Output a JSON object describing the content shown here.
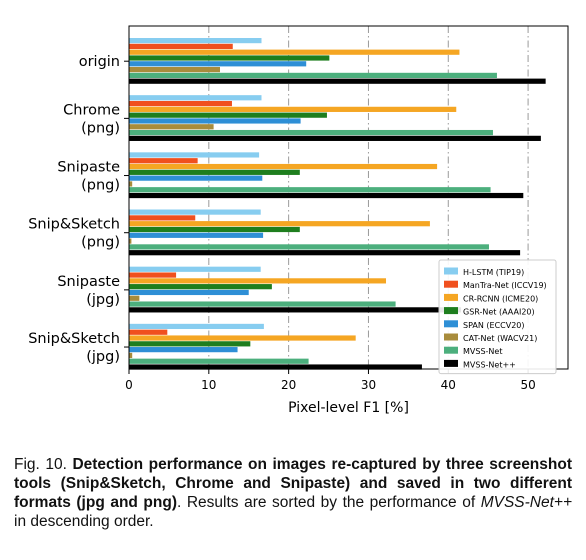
{
  "chart_data": {
    "type": "bar",
    "orientation": "horizontal",
    "xlabel": "Pixel-level F1 [%]",
    "xlim": [
      0,
      55
    ],
    "xticks": [
      0,
      10,
      20,
      30,
      40,
      50
    ],
    "grid": "vertical dash-dot lines at x ticks",
    "legend_position": "lower-right",
    "categories": [
      [
        "origin"
      ],
      [
        "Chrome",
        "(png)"
      ],
      [
        "Snipaste",
        "(png)"
      ],
      [
        "Snip&Sketch",
        "(png)"
      ],
      [
        "Snipaste",
        "(jpg)"
      ],
      [
        "Snip&Sketch",
        "(jpg)"
      ]
    ],
    "series": [
      {
        "name": "H-LSTM (TIP19)",
        "color": "#87cdf0",
        "values": [
          16.6,
          16.6,
          16.3,
          16.5,
          16.5,
          16.9
        ]
      },
      {
        "name": "ManTra-Net (ICCV19)",
        "color": "#f0501e",
        "values": [
          13.0,
          12.9,
          8.6,
          8.3,
          5.9,
          4.8
        ]
      },
      {
        "name": "CR-RCNN (ICME20)",
        "color": "#f5a623",
        "values": [
          41.4,
          41.0,
          38.6,
          37.7,
          32.2,
          28.4
        ]
      },
      {
        "name": "GSR-Net (AAAI20)",
        "color": "#1e7e1e",
        "values": [
          25.1,
          24.8,
          21.4,
          21.4,
          17.9,
          15.2
        ]
      },
      {
        "name": "SPAN (ECCV20)",
        "color": "#2e8fd6",
        "values": [
          22.2,
          21.5,
          16.7,
          16.8,
          15.0,
          13.6
        ]
      },
      {
        "name": "CAT-Net (WACV21)",
        "color": "#a88c3c",
        "values": [
          11.4,
          10.6,
          0.4,
          0.3,
          1.3,
          0.4
        ]
      },
      {
        "name": "MVSS-Net",
        "color": "#4caf7d",
        "values": [
          46.1,
          45.6,
          45.3,
          45.1,
          33.4,
          22.5
        ]
      },
      {
        "name": "MVSS-Net++",
        "color": "#000000",
        "values": [
          52.2,
          51.6,
          49.4,
          49.0,
          41.6,
          36.7
        ]
      }
    ]
  },
  "caption": {
    "label": "Fig. 10. ",
    "bold": "Detection performance on images re-captured by three screenshot tools (Snip&Sketch, Chrome and Snipaste) and saved in two different formats (jpg and png)",
    "rest_1": ". Results are sorted by the performance of ",
    "italic": "MVSS-Net++",
    "rest_2": " in descending order."
  }
}
